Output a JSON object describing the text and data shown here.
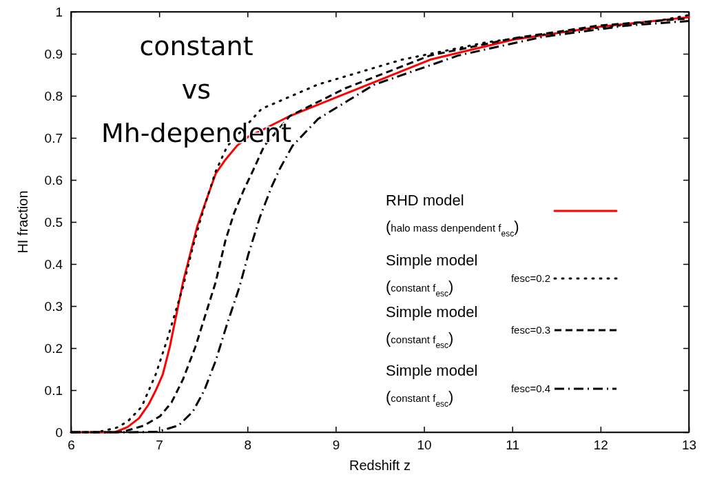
{
  "chart_data": {
    "type": "line",
    "xlabel": "Redshift z",
    "ylabel": "HI fraction",
    "xlim": [
      6,
      13
    ],
    "ylim": [
      0,
      1
    ],
    "xticks": [
      6,
      7,
      8,
      9,
      10,
      11,
      12,
      13
    ],
    "yticks": [
      0,
      0.1,
      0.2,
      0.3,
      0.4,
      0.5,
      0.6,
      0.7,
      0.8,
      0.9,
      1
    ],
    "legend": "right",
    "grid": false,
    "annotations": [
      "constant",
      "vs",
      "Mh-dependent"
    ],
    "series": [
      {
        "name": "RHD model\n(halo mass denpendent f$_{esc}$)",
        "color": "#ff0000",
        "line_style": "solid",
        "x": [
          6,
          6.5,
          6.64,
          6.77,
          6.88,
          6.96,
          7.04,
          7.12,
          7.19,
          7.27,
          7.35,
          7.43,
          7.51,
          7.64,
          7.75,
          7.88,
          8.01,
          8.16,
          8.48,
          9.11,
          10.07,
          11.02,
          11.98,
          13
        ],
        "values": [
          0,
          0,
          0.012,
          0.033,
          0.066,
          0.099,
          0.137,
          0.203,
          0.275,
          0.357,
          0.423,
          0.489,
          0.538,
          0.615,
          0.648,
          0.681,
          0.703,
          0.718,
          0.752,
          0.805,
          0.886,
          0.934,
          0.964,
          0.987
        ]
      },
      {
        "name": "Simple model\n(constant f$_{esc}$)\nfesc=0.2",
        "color": "#000000",
        "line_style": "dotted",
        "x": [
          6,
          6.3,
          6.52,
          6.64,
          6.8,
          6.96,
          7.09,
          7.19,
          7.27,
          7.38,
          7.46,
          7.54,
          7.64,
          7.77,
          8.16,
          8.8,
          9.75,
          10.7,
          11.66,
          12.62,
          13
        ],
        "values": [
          0,
          0,
          0.011,
          0.025,
          0.06,
          0.137,
          0.22,
          0.29,
          0.346,
          0.44,
          0.5,
          0.555,
          0.62,
          0.68,
          0.769,
          0.827,
          0.886,
          0.927,
          0.954,
          0.977,
          0.992
        ]
      },
      {
        "name": "Simple model\n(constant f$_{esc}$)\nfesc=0.3",
        "color": "#000000",
        "line_style": "dashed",
        "x": [
          6,
          6.4,
          6.59,
          6.83,
          7.01,
          7.14,
          7.27,
          7.41,
          7.54,
          7.64,
          7.75,
          7.85,
          7.96,
          8.06,
          8.19,
          8.48,
          9.11,
          10.07,
          11.02,
          11.98,
          13
        ],
        "values": [
          0,
          0,
          0.001,
          0.016,
          0.038,
          0.071,
          0.126,
          0.203,
          0.29,
          0.357,
          0.456,
          0.522,
          0.577,
          0.621,
          0.681,
          0.752,
          0.818,
          0.896,
          0.937,
          0.967,
          0.984
        ]
      },
      {
        "name": "Simple model\n(constant f$_{esc}$)\nfesc=0.4",
        "color": "#000000",
        "line_style": "dashdot",
        "x": [
          6,
          6.7,
          6.98,
          7.22,
          7.38,
          7.51,
          7.64,
          7.77,
          7.91,
          8.01,
          8.14,
          8.27,
          8.37,
          8.51,
          8.8,
          9.43,
          10.39,
          11.34,
          12.3,
          13
        ],
        "values": [
          0,
          0,
          0.001,
          0.016,
          0.049,
          0.099,
          0.17,
          0.258,
          0.346,
          0.423,
          0.511,
          0.582,
          0.628,
          0.681,
          0.745,
          0.826,
          0.896,
          0.94,
          0.967,
          0.978
        ]
      }
    ]
  }
}
